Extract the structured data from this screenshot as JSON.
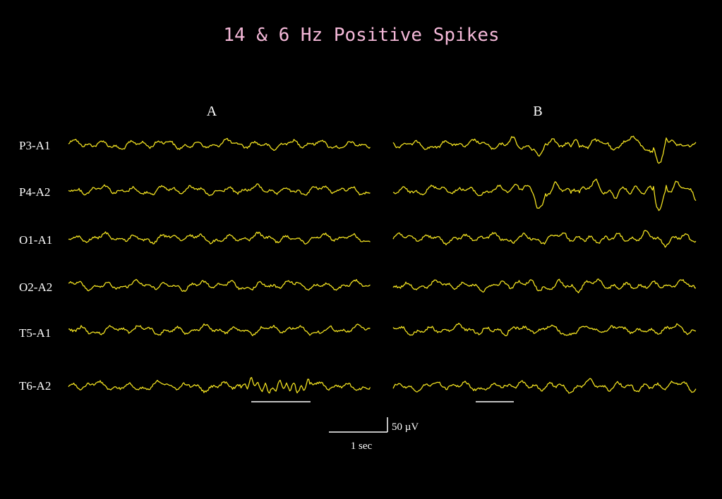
{
  "title": "14 & 6 Hz Positive Spikes",
  "panels": [
    "A",
    "B"
  ],
  "channels": [
    "P3-A1",
    "P4-A2",
    "O1-A1",
    "O2-A2",
    "T5-A1",
    "T6-A2"
  ],
  "scale": {
    "amplitude": "50 µV",
    "time": "1 sec"
  }
}
